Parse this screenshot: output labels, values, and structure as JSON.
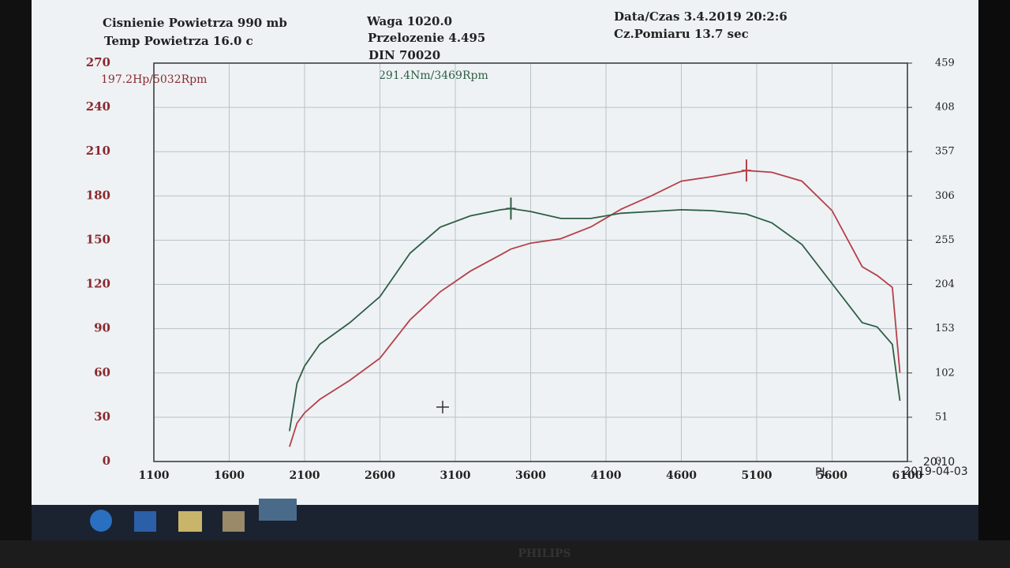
{
  "chart_data": {
    "type": "line",
    "info": {
      "pressure": "Cisnienie Powietrza  990 mb",
      "temperature": "Temp Powietrza  16.0 c",
      "weight": "Waga    1020.0",
      "ratio": "Przelozenie 4.495",
      "standard": "DIN 70020",
      "datetime": "Data/Czas 3.4.2019 20:2:6",
      "duration": "Cz.Pomiaru 13.7 sec"
    },
    "annotations": [
      "197.2Hp/5032Rpm",
      "291.4Nm/3469Rpm"
    ],
    "x": [
      2000,
      2050,
      2100,
      2200,
      2400,
      2600,
      2800,
      3000,
      3200,
      3400,
      3469,
      3600,
      3800,
      4000,
      4200,
      4400,
      4600,
      4800,
      5032,
      5200,
      5400,
      5600,
      5800,
      5900,
      6000,
      6050
    ],
    "series": [
      {
        "color": "#b5404a",
        "values": [
          10,
          26,
          33,
          42,
          55,
          70,
          96,
          115,
          129,
          140,
          144,
          148,
          151,
          159,
          171,
          180,
          190,
          193,
          197.2,
          196,
          190,
          170,
          132,
          126,
          118,
          60
        ]
      },
      {
        "color": "#2f5e44",
        "axis": "y2",
        "values": [
          35,
          90,
          110,
          135,
          160,
          190,
          240,
          270,
          283,
          290,
          291.4,
          288,
          280,
          280,
          286,
          288,
          290,
          289,
          285,
          275,
          250,
          205,
          160,
          155,
          135,
          70
        ]
      }
    ],
    "peaks": [
      {
        "series": 0,
        "index": 18
      },
      {
        "series": 1,
        "index": 10
      }
    ],
    "xlim": [
      1100,
      6100
    ],
    "xticks": [
      1100,
      1600,
      2100,
      2600,
      3100,
      3600,
      4100,
      4600,
      5100,
      5600,
      6100
    ],
    "ylim": [
      0,
      270
    ],
    "yticks": [
      0,
      30,
      60,
      90,
      120,
      150,
      180,
      210,
      240,
      270
    ],
    "y2lim": [
      0,
      459
    ],
    "y2ticks": [
      0,
      51,
      102,
      153,
      204,
      255,
      306,
      357,
      408,
      459
    ],
    "grid": true,
    "taskbar": {
      "lang": "PL",
      "time": "20:10",
      "date": "2019-04-03"
    }
  }
}
